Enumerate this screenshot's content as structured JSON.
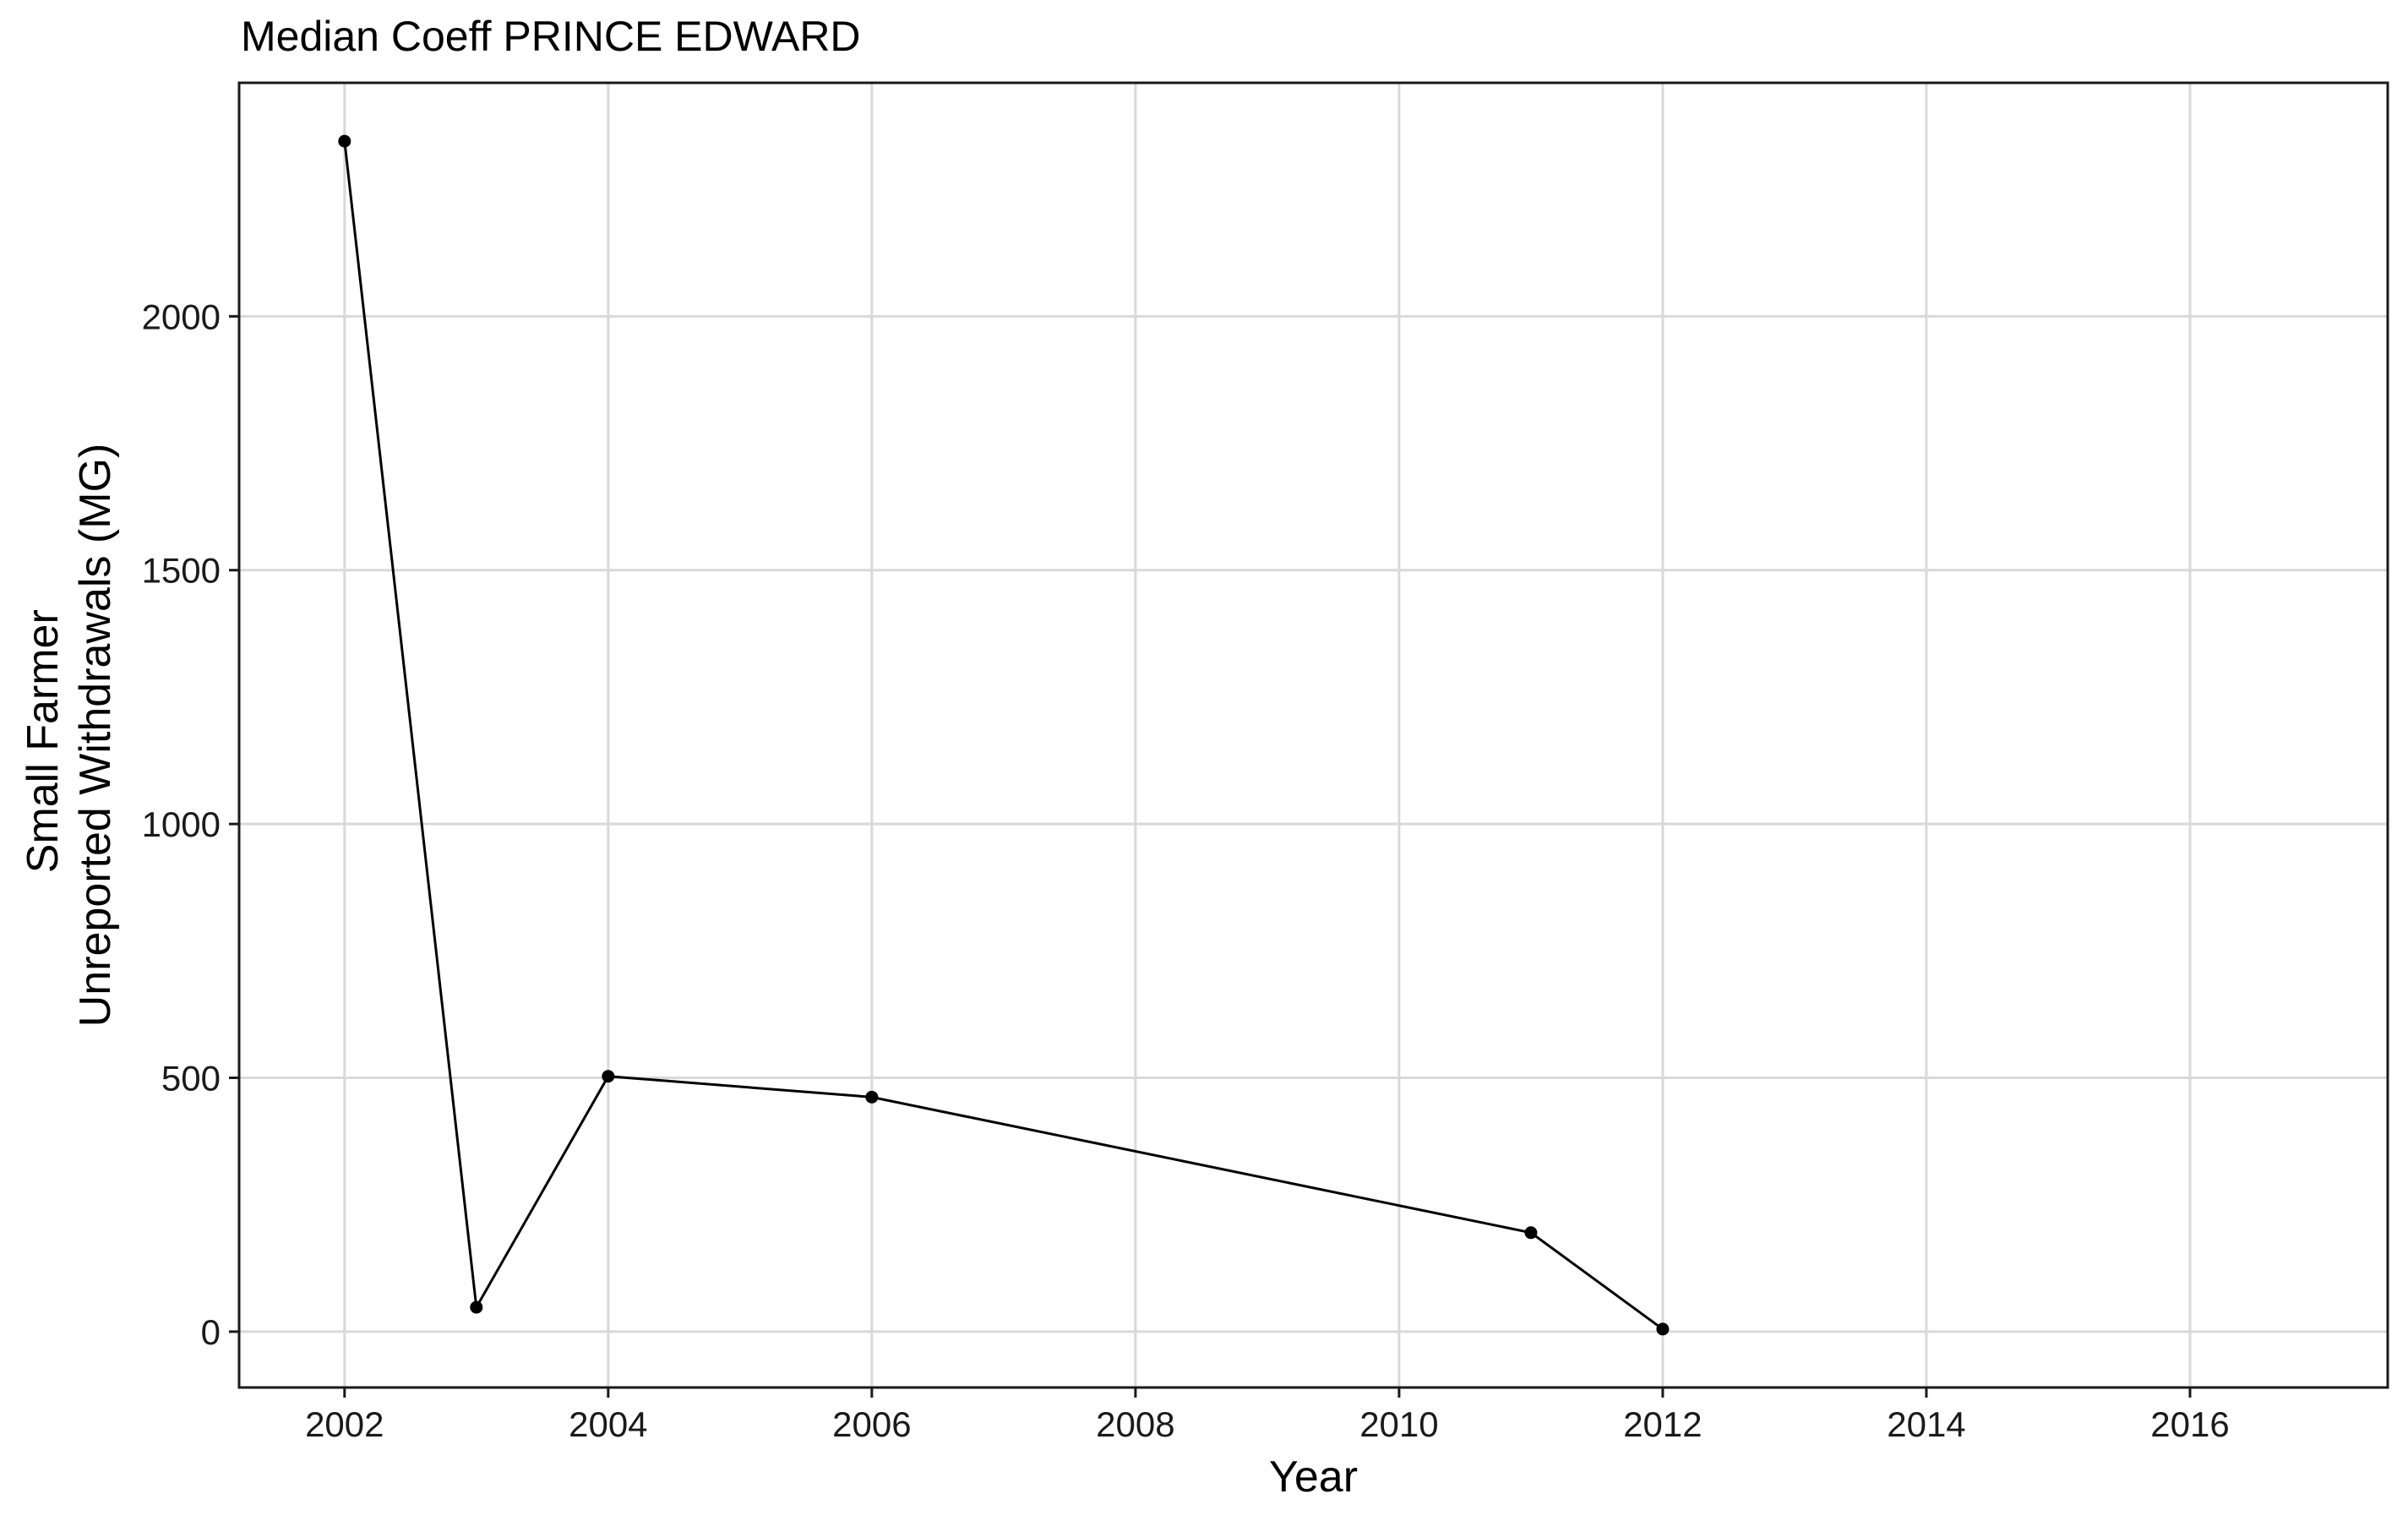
{
  "chart_data": {
    "type": "line",
    "title": "Median Coeff PRINCE EDWARD",
    "xlabel": "Year",
    "ylabel_lines": [
      "Small Farmer",
      "Unreported Withdrawals (MG)"
    ],
    "xlim": [
      2001.2,
      2017.5
    ],
    "ylim": [
      -110,
      2460
    ],
    "x_ticks": [
      2002,
      2004,
      2006,
      2008,
      2010,
      2012,
      2014,
      2016
    ],
    "x_tick_labels": [
      "2002",
      "2004",
      "2006",
      "2008",
      "2010",
      "2012",
      "2014",
      "2016"
    ],
    "y_ticks": [
      0,
      500,
      1000,
      1500,
      2000
    ],
    "y_tick_labels": [
      "0",
      "500",
      "1000",
      "1500",
      "2000"
    ],
    "grid": true,
    "legend": "none",
    "series": [
      {
        "x": [
          2002,
          2003,
          2004,
          2006,
          2011,
          2012
        ],
        "y": [
          2345,
          48,
          503,
          462,
          195,
          5
        ]
      }
    ],
    "colors": {
      "line": "#000000",
      "grid": "#d9d9d9",
      "border": "#1a1a1a",
      "background": "#ffffff"
    }
  }
}
